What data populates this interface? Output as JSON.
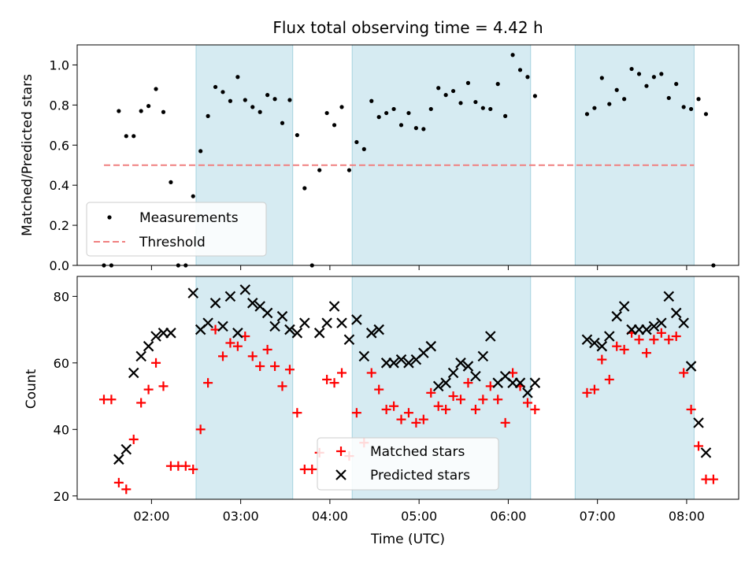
{
  "chart_data": [
    {
      "type": "scatter",
      "title": "Flux total observing time = 4.42 h",
      "xlabel": "",
      "ylabel": "Matched/Predicted stars",
      "xlim": [
        "01:10",
        "08:35"
      ],
      "ylim": [
        0,
        1.1
      ],
      "yticks": [
        "0.0",
        "0.2",
        "0.4",
        "0.6",
        "0.8",
        "1.0"
      ],
      "shaded_intervals": [
        [
          "02:30",
          "03:35"
        ],
        [
          "04:15",
          "06:15"
        ],
        [
          "06:45",
          "08:05"
        ]
      ],
      "threshold": {
        "name": "Threshold",
        "value": 0.5,
        "x_range": [
          "01:28",
          "08:05"
        ],
        "color": "#f08080"
      },
      "legend": {
        "placement": "lower left",
        "entries": [
          "Measurements",
          "Threshold"
        ]
      },
      "series": [
        {
          "name": "Measurements",
          "color": "#000000",
          "points": [
            [
              "01:28",
              0.0
            ],
            [
              "01:33",
              0.0
            ],
            [
              "01:38",
              0.77
            ],
            [
              "01:43",
              0.645
            ],
            [
              "01:48",
              0.645
            ],
            [
              "01:53",
              0.77
            ],
            [
              "01:58",
              0.795
            ],
            [
              "02:03",
              0.88
            ],
            [
              "02:08",
              0.765
            ],
            [
              "02:13",
              0.415
            ],
            [
              "02:18",
              0.0
            ],
            [
              "02:23",
              0.0
            ],
            [
              "02:28",
              0.345
            ],
            [
              "02:33",
              0.57
            ],
            [
              "02:38",
              0.745
            ],
            [
              "02:43",
              0.89
            ],
            [
              "02:48",
              0.865
            ],
            [
              "02:53",
              0.82
            ],
            [
              "02:58",
              0.94
            ],
            [
              "03:03",
              0.825
            ],
            [
              "03:08",
              0.79
            ],
            [
              "03:13",
              0.765
            ],
            [
              "03:18",
              0.85
            ],
            [
              "03:23",
              0.83
            ],
            [
              "03:28",
              0.71
            ],
            [
              "03:33",
              0.825
            ],
            [
              "03:38",
              0.65
            ],
            [
              "03:43",
              0.385
            ],
            [
              "03:48",
              0.0
            ],
            [
              "03:53",
              0.475
            ],
            [
              "03:58",
              0.76
            ],
            [
              "04:03",
              0.7
            ],
            [
              "04:08",
              0.79
            ],
            [
              "04:13",
              0.475
            ],
            [
              "04:18",
              0.615
            ],
            [
              "04:23",
              0.58
            ],
            [
              "04:28",
              0.82
            ],
            [
              "04:33",
              0.74
            ],
            [
              "04:38",
              0.76
            ],
            [
              "04:43",
              0.78
            ],
            [
              "04:48",
              0.7
            ],
            [
              "04:53",
              0.76
            ],
            [
              "04:58",
              0.685
            ],
            [
              "05:03",
              0.68
            ],
            [
              "05:08",
              0.78
            ],
            [
              "05:13",
              0.885
            ],
            [
              "05:18",
              0.85
            ],
            [
              "05:23",
              0.87
            ],
            [
              "05:28",
              0.81
            ],
            [
              "05:33",
              0.91
            ],
            [
              "05:38",
              0.815
            ],
            [
              "05:43",
              0.785
            ],
            [
              "05:48",
              0.78
            ],
            [
              "05:53",
              0.905
            ],
            [
              "05:58",
              0.745
            ],
            [
              "06:03",
              1.05
            ],
            [
              "06:08",
              0.975
            ],
            [
              "06:13",
              0.94
            ],
            [
              "06:18",
              0.845
            ],
            [
              "06:53",
              0.755
            ],
            [
              "06:58",
              0.785
            ],
            [
              "07:03",
              0.935
            ],
            [
              "07:08",
              0.805
            ],
            [
              "07:13",
              0.875
            ],
            [
              "07:18",
              0.83
            ],
            [
              "07:23",
              0.98
            ],
            [
              "07:28",
              0.955
            ],
            [
              "07:33",
              0.895
            ],
            [
              "07:38",
              0.94
            ],
            [
              "07:43",
              0.955
            ],
            [
              "07:48",
              0.835
            ],
            [
              "07:53",
              0.905
            ],
            [
              "07:58",
              0.79
            ],
            [
              "08:03",
              0.78
            ],
            [
              "08:08",
              0.83
            ],
            [
              "08:13",
              0.755
            ],
            [
              "08:18",
              0.0
            ]
          ]
        }
      ]
    },
    {
      "type": "scatter",
      "title": "",
      "xlabel": "Time (UTC)",
      "ylabel": "Count",
      "xlim": [
        "01:10",
        "08:35"
      ],
      "ylim": [
        19,
        86
      ],
      "yticks": [
        "20",
        "40",
        "60",
        "80"
      ],
      "xticks": [
        "02:00",
        "03:00",
        "04:00",
        "05:00",
        "06:00",
        "07:00",
        "08:00"
      ],
      "shaded_intervals": [
        [
          "02:30",
          "03:35"
        ],
        [
          "04:15",
          "06:15"
        ],
        [
          "06:45",
          "08:05"
        ]
      ],
      "legend": {
        "placement": "lower center",
        "entries": [
          "Matched stars",
          "Predicted stars"
        ]
      },
      "series": [
        {
          "name": "Matched stars",
          "color": "#ff0000",
          "marker": "plus",
          "points": [
            [
              "01:28",
              49
            ],
            [
              "01:33",
              49
            ],
            [
              "01:38",
              24
            ],
            [
              "01:43",
              22
            ],
            [
              "01:48",
              37
            ],
            [
              "01:53",
              48
            ],
            [
              "01:58",
              52
            ],
            [
              "02:03",
              60
            ],
            [
              "02:08",
              53
            ],
            [
              "02:13",
              29
            ],
            [
              "02:18",
              29
            ],
            [
              "02:23",
              29
            ],
            [
              "02:28",
              28
            ],
            [
              "02:33",
              40
            ],
            [
              "02:38",
              54
            ],
            [
              "02:43",
              70
            ],
            [
              "02:48",
              62
            ],
            [
              "02:53",
              66
            ],
            [
              "02:58",
              65
            ],
            [
              "03:03",
              68
            ],
            [
              "03:08",
              62
            ],
            [
              "03:13",
              59
            ],
            [
              "03:18",
              64
            ],
            [
              "03:23",
              59
            ],
            [
              "03:28",
              53
            ],
            [
              "03:33",
              58
            ],
            [
              "03:38",
              45
            ],
            [
              "03:43",
              28
            ],
            [
              "03:48",
              28
            ],
            [
              "03:53",
              33
            ],
            [
              "03:58",
              55
            ],
            [
              "04:03",
              54
            ],
            [
              "04:08",
              57
            ],
            [
              "04:13",
              32
            ],
            [
              "04:18",
              45
            ],
            [
              "04:23",
              36
            ],
            [
              "04:28",
              57
            ],
            [
              "04:33",
              52
            ],
            [
              "04:38",
              46
            ],
            [
              "04:43",
              47
            ],
            [
              "04:48",
              43
            ],
            [
              "04:53",
              45
            ],
            [
              "04:58",
              42
            ],
            [
              "05:03",
              43
            ],
            [
              "05:08",
              51
            ],
            [
              "05:13",
              47
            ],
            [
              "05:18",
              46
            ],
            [
              "05:23",
              50
            ],
            [
              "05:28",
              49
            ],
            [
              "05:33",
              54
            ],
            [
              "05:38",
              46
            ],
            [
              "05:43",
              49
            ],
            [
              "05:48",
              53
            ],
            [
              "05:53",
              49
            ],
            [
              "05:58",
              42
            ],
            [
              "06:03",
              57
            ],
            [
              "06:08",
              53
            ],
            [
              "06:13",
              48
            ],
            [
              "06:18",
              46
            ],
            [
              "06:53",
              51
            ],
            [
              "06:58",
              52
            ],
            [
              "07:03",
              61
            ],
            [
              "07:08",
              55
            ],
            [
              "07:13",
              65
            ],
            [
              "07:18",
              64
            ],
            [
              "07:23",
              69
            ],
            [
              "07:28",
              67
            ],
            [
              "07:33",
              63
            ],
            [
              "07:38",
              67
            ],
            [
              "07:43",
              69
            ],
            [
              "07:48",
              67
            ],
            [
              "07:53",
              68
            ],
            [
              "07:58",
              57
            ],
            [
              "08:03",
              46
            ],
            [
              "08:08",
              35
            ],
            [
              "08:13",
              25
            ],
            [
              "08:18",
              25
            ]
          ]
        },
        {
          "name": "Predicted stars",
          "color": "#000000",
          "marker": "x",
          "points": [
            [
              "01:38",
              31
            ],
            [
              "01:43",
              34
            ],
            [
              "01:48",
              57
            ],
            [
              "01:53",
              62
            ],
            [
              "01:58",
              65
            ],
            [
              "02:03",
              68
            ],
            [
              "02:08",
              69
            ],
            [
              "02:13",
              69
            ],
            [
              "02:28",
              81
            ],
            [
              "02:33",
              70
            ],
            [
              "02:38",
              72
            ],
            [
              "02:43",
              78
            ],
            [
              "02:48",
              71
            ],
            [
              "02:53",
              80
            ],
            [
              "02:58",
              69
            ],
            [
              "03:03",
              82
            ],
            [
              "03:08",
              78
            ],
            [
              "03:13",
              77
            ],
            [
              "03:18",
              75
            ],
            [
              "03:23",
              71
            ],
            [
              "03:28",
              74
            ],
            [
              "03:33",
              70
            ],
            [
              "03:38",
              69
            ],
            [
              "03:43",
              72
            ],
            [
              "03:53",
              69
            ],
            [
              "03:58",
              72
            ],
            [
              "04:03",
              77
            ],
            [
              "04:08",
              72
            ],
            [
              "04:13",
              67
            ],
            [
              "04:18",
              73
            ],
            [
              "04:23",
              62
            ],
            [
              "04:28",
              69
            ],
            [
              "04:33",
              70
            ],
            [
              "04:38",
              60
            ],
            [
              "04:43",
              60
            ],
            [
              "04:48",
              61
            ],
            [
              "04:53",
              60
            ],
            [
              "04:58",
              61
            ],
            [
              "05:03",
              63
            ],
            [
              "05:08",
              65
            ],
            [
              "05:13",
              53
            ],
            [
              "05:18",
              54
            ],
            [
              "05:23",
              57
            ],
            [
              "05:28",
              60
            ],
            [
              "05:33",
              59
            ],
            [
              "05:38",
              56
            ],
            [
              "05:43",
              62
            ],
            [
              "05:48",
              68
            ],
            [
              "05:53",
              54
            ],
            [
              "05:58",
              56
            ],
            [
              "06:03",
              54
            ],
            [
              "06:08",
              54
            ],
            [
              "06:13",
              51
            ],
            [
              "06:18",
              54
            ],
            [
              "06:53",
              67
            ],
            [
              "06:58",
              66
            ],
            [
              "07:03",
              65
            ],
            [
              "07:08",
              68
            ],
            [
              "07:13",
              74
            ],
            [
              "07:18",
              77
            ],
            [
              "07:23",
              70
            ],
            [
              "07:28",
              70
            ],
            [
              "07:33",
              70
            ],
            [
              "07:38",
              71
            ],
            [
              "07:43",
              72
            ],
            [
              "07:48",
              80
            ],
            [
              "07:53",
              75
            ],
            [
              "07:58",
              72
            ],
            [
              "08:03",
              59
            ],
            [
              "08:08",
              42
            ],
            [
              "08:13",
              33
            ]
          ]
        }
      ]
    }
  ]
}
